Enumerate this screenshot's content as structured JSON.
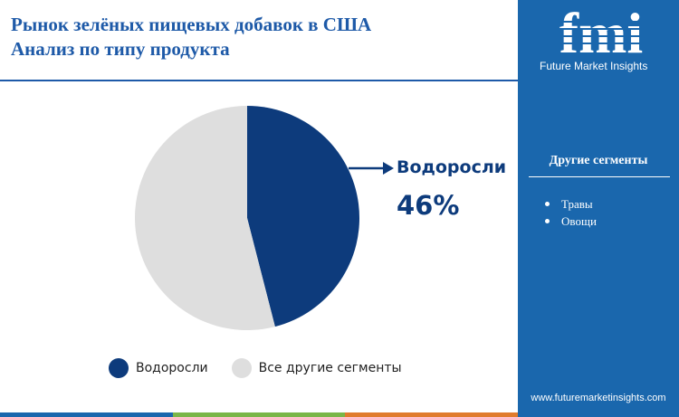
{
  "title": {
    "line1": "Рынок зелёных пищевых добавок в США",
    "line2": "Анализ по типу продукта"
  },
  "chart_data": {
    "type": "pie",
    "slices": [
      {
        "label": "Водоросли",
        "value": 46,
        "color": "#0d3b7c"
      },
      {
        "label": "Все другие сегменты",
        "value": 54,
        "color": "#dedede"
      }
    ],
    "start_angle_deg": 0,
    "direction": "clockwise",
    "legend_position": "bottom"
  },
  "callout": {
    "label": "Водоросли",
    "value": "46%"
  },
  "legend": [
    {
      "label": "Водоросли",
      "color": "#0d3b7c"
    },
    {
      "label": "Все другие сегменты",
      "color": "#dedede"
    }
  ],
  "sidebar": {
    "logo_letters": "fmi",
    "logo_tagline": "Future Market Insights",
    "segments_heading": "Другие сегменты",
    "segments": [
      "Травы",
      "Овощи"
    ],
    "website": "www.futuremarketinsights.com",
    "bg_color": "#1a67ad"
  },
  "bottom_bar_colors": [
    "#1a67ad",
    "#7ab648",
    "#e07b2c"
  ]
}
